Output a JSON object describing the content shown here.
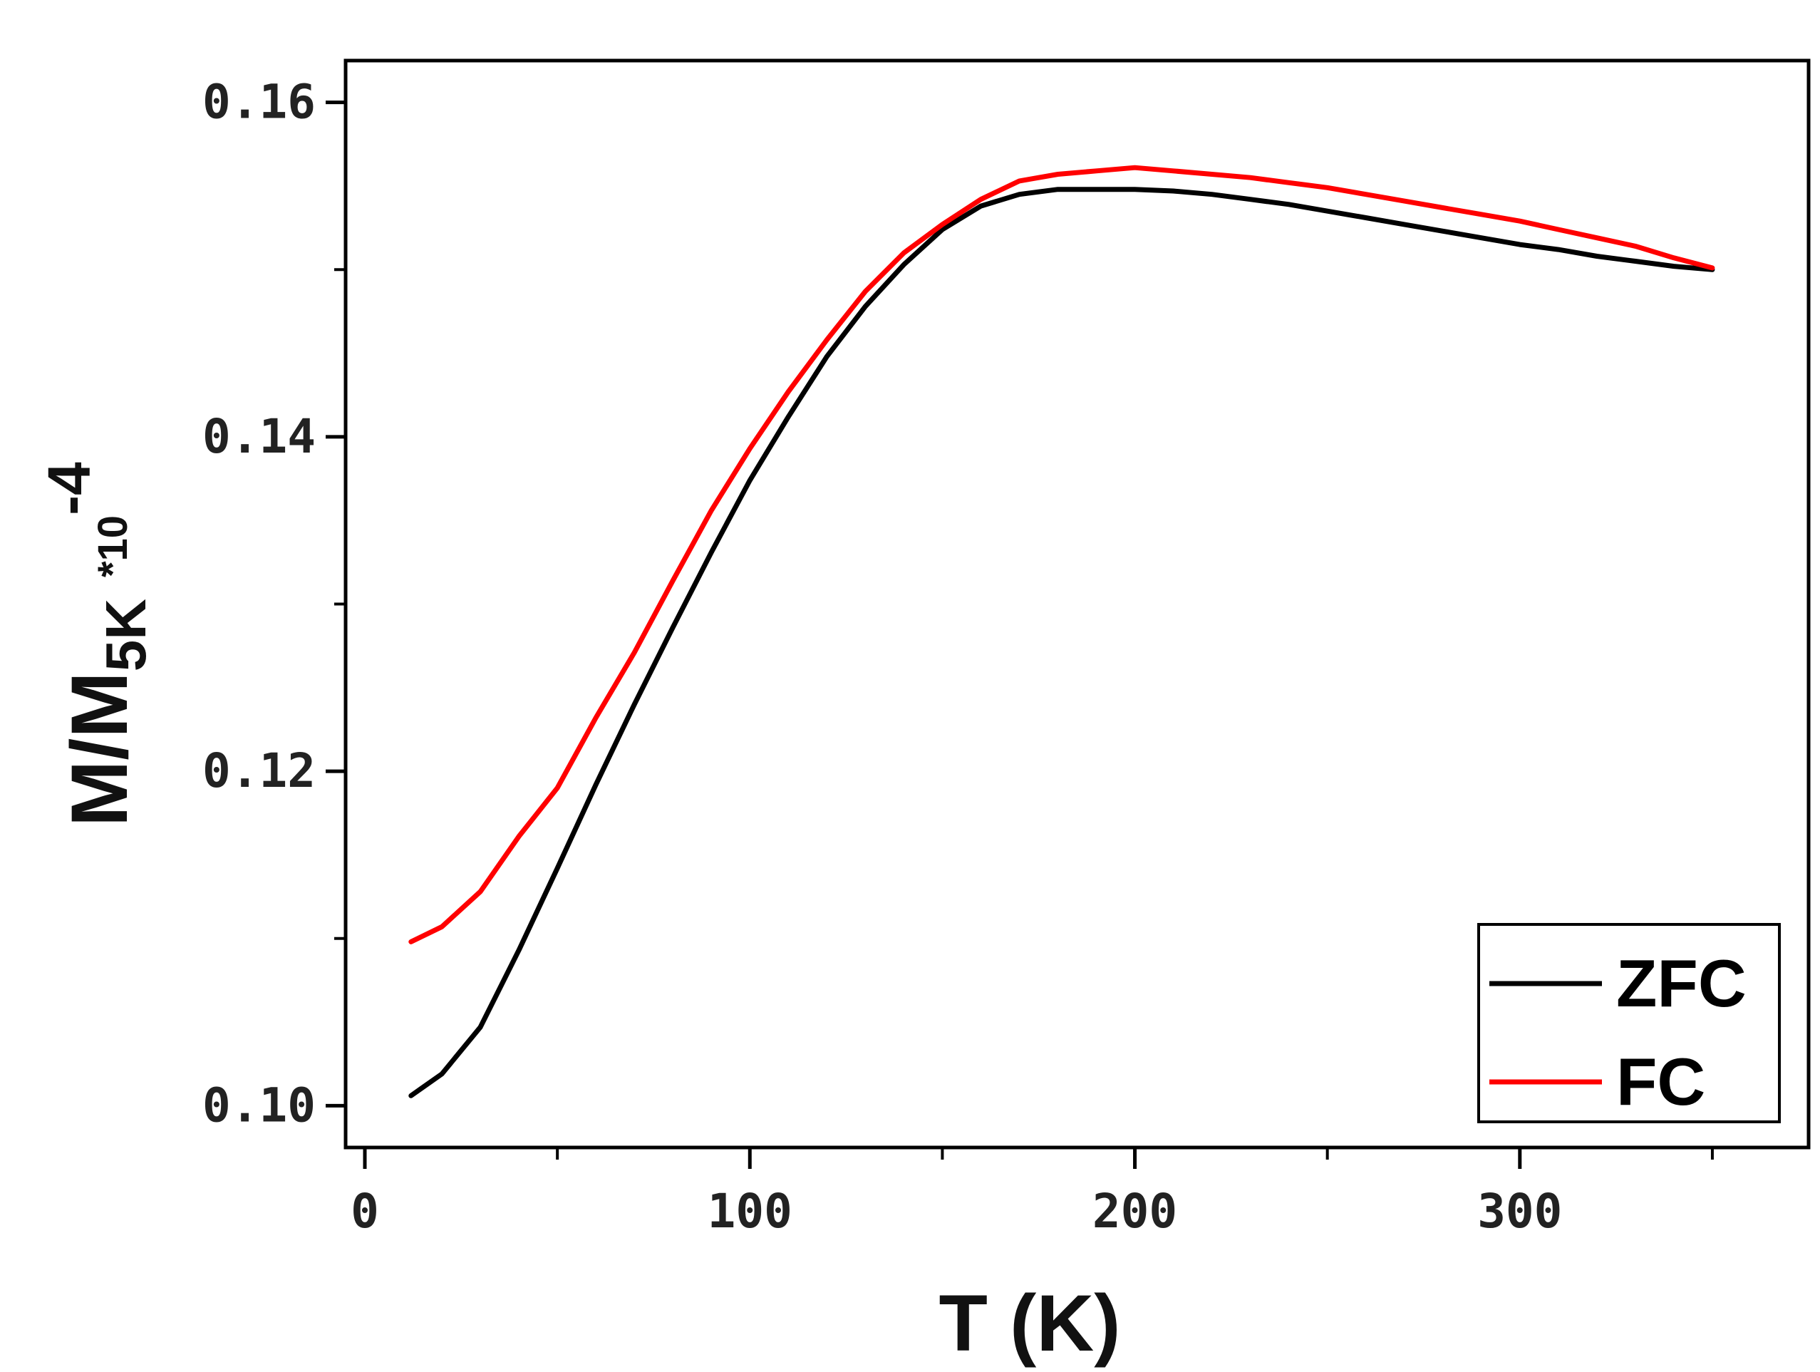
{
  "chart_data": {
    "type": "line",
    "xlabel": "T (K)",
    "ylabel": {
      "main": "M/M",
      "subscript": "5K",
      "multiplier": "*10",
      "exponent": "-4"
    },
    "xlim": [
      -5,
      375
    ],
    "ylim": [
      0.0975,
      0.1625
    ],
    "x_ticks": [
      {
        "value": 0,
        "label": "0"
      },
      {
        "value": 100,
        "label": "100"
      },
      {
        "value": 200,
        "label": "200"
      },
      {
        "value": 300,
        "label": "300"
      }
    ],
    "x_minor_ticks": [
      50,
      150,
      250,
      350
    ],
    "y_ticks": [
      {
        "value": 0.1,
        "label": "0.10"
      },
      {
        "value": 0.12,
        "label": "0.12"
      },
      {
        "value": 0.14,
        "label": "0.14"
      },
      {
        "value": 0.16,
        "label": "0.16"
      }
    ],
    "y_minor_ticks": [
      0.11,
      0.13,
      0.15
    ],
    "legend_position": "bottom-right",
    "series": [
      {
        "name": "ZFC",
        "color": "#000000",
        "x": [
          12,
          20,
          30,
          40,
          50,
          60,
          70,
          80,
          90,
          100,
          110,
          120,
          130,
          140,
          150,
          160,
          170,
          180,
          190,
          200,
          210,
          220,
          230,
          240,
          250,
          260,
          270,
          280,
          290,
          300,
          310,
          320,
          330,
          340,
          350
        ],
        "y": [
          0.1006,
          0.1019,
          0.1047,
          0.1093,
          0.1142,
          0.1192,
          0.124,
          0.1286,
          0.1331,
          0.1374,
          0.1412,
          0.1448,
          0.1478,
          0.1503,
          0.1524,
          0.1538,
          0.1545,
          0.1548,
          0.1548,
          0.1548,
          0.1547,
          0.1545,
          0.1542,
          0.1539,
          0.1535,
          0.1531,
          0.1527,
          0.1523,
          0.1519,
          0.1515,
          0.1512,
          0.1508,
          0.1505,
          0.1502,
          0.15
        ]
      },
      {
        "name": "FC",
        "color": "#ff0000",
        "x": [
          12,
          20,
          30,
          40,
          50,
          60,
          70,
          80,
          90,
          100,
          110,
          120,
          130,
          140,
          150,
          160,
          170,
          180,
          190,
          200,
          210,
          220,
          230,
          240,
          250,
          260,
          270,
          280,
          290,
          300,
          310,
          320,
          330,
          340,
          350
        ],
        "y": [
          0.1098,
          0.1107,
          0.1128,
          0.1161,
          0.119,
          0.1232,
          0.1271,
          0.1314,
          0.1356,
          0.1393,
          0.1427,
          0.1458,
          0.1487,
          0.151,
          0.1527,
          0.1542,
          0.1553,
          0.1557,
          0.1559,
          0.1561,
          0.1559,
          0.1557,
          0.1555,
          0.1552,
          0.1549,
          0.1545,
          0.1541,
          0.1537,
          0.1533,
          0.1529,
          0.1524,
          0.1519,
          0.1514,
          0.1507,
          0.1501
        ]
      }
    ]
  }
}
